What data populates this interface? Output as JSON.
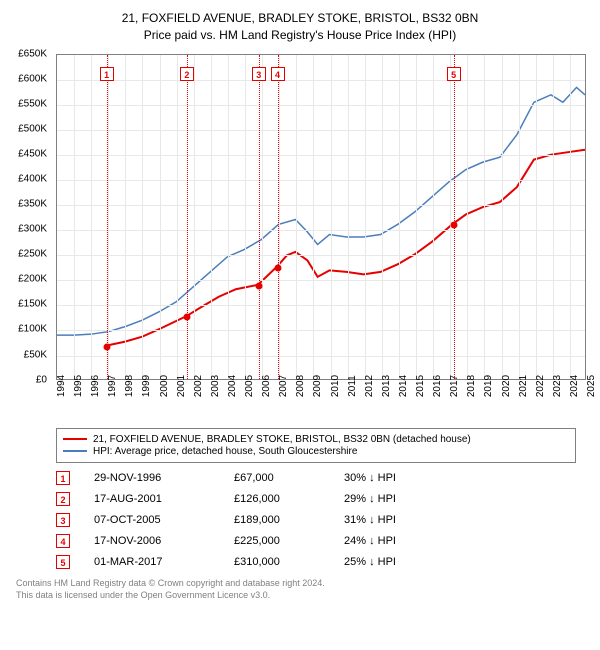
{
  "title": {
    "line1": "21, FOXFIELD AVENUE, BRADLEY STOKE, BRISTOL, BS32 0BN",
    "line2": "Price paid vs. HM Land Registry's House Price Index (HPI)"
  },
  "chart": {
    "type": "line",
    "background_color": "#ffffff",
    "border_color": "#808080",
    "grid_color": "#e8e8e8",
    "xlim": [
      1994,
      2025
    ],
    "ylim": [
      0,
      650000
    ],
    "ytick_step": 50000,
    "y_ticks": [
      "£0",
      "£50K",
      "£100K",
      "£150K",
      "£200K",
      "£250K",
      "£300K",
      "£350K",
      "£400K",
      "£450K",
      "£500K",
      "£550K",
      "£600K",
      "£650K"
    ],
    "x_ticks": [
      "1994",
      "1995",
      "1996",
      "1997",
      "1998",
      "1999",
      "2000",
      "2001",
      "2002",
      "2003",
      "2004",
      "2005",
      "2006",
      "2007",
      "2008",
      "2009",
      "2010",
      "2011",
      "2012",
      "2013",
      "2014",
      "2015",
      "2016",
      "2017",
      "2018",
      "2019",
      "2020",
      "2021",
      "2022",
      "2023",
      "2024",
      "2025"
    ],
    "series_property": {
      "label": "21, FOXFIELD AVENUE, BRADLEY STOKE, BRISTOL, BS32 0BN (detached house)",
      "color": "#e60000",
      "line_width": 2,
      "points": [
        [
          1996.9,
          67000
        ],
        [
          1998,
          75000
        ],
        [
          1999,
          85000
        ],
        [
          2000,
          100000
        ],
        [
          2001.6,
          126000
        ],
        [
          2002.5,
          145000
        ],
        [
          2003.5,
          165000
        ],
        [
          2004.5,
          180000
        ],
        [
          2005.8,
          189000
        ],
        [
          2006.9,
          225000
        ],
        [
          2007.5,
          248000
        ],
        [
          2008,
          255000
        ],
        [
          2008.7,
          238000
        ],
        [
          2009.3,
          205000
        ],
        [
          2010,
          218000
        ],
        [
          2011,
          215000
        ],
        [
          2012,
          210000
        ],
        [
          2013,
          215000
        ],
        [
          2014,
          230000
        ],
        [
          2015,
          250000
        ],
        [
          2016,
          275000
        ],
        [
          2017.2,
          310000
        ],
        [
          2018,
          330000
        ],
        [
          2019,
          345000
        ],
        [
          2020,
          355000
        ],
        [
          2021,
          385000
        ],
        [
          2022,
          440000
        ],
        [
          2023,
          450000
        ],
        [
          2024,
          455000
        ],
        [
          2025,
          460000
        ]
      ]
    },
    "series_hpi": {
      "label": "HPI: Average price, detached house, South Gloucestershire",
      "color": "#4a7ebb",
      "line_width": 1.5,
      "points": [
        [
          1994,
          88000
        ],
        [
          1995,
          88000
        ],
        [
          1996,
          90000
        ],
        [
          1997,
          95000
        ],
        [
          1998,
          105000
        ],
        [
          1999,
          118000
        ],
        [
          2000,
          135000
        ],
        [
          2001,
          155000
        ],
        [
          2002,
          185000
        ],
        [
          2003,
          215000
        ],
        [
          2004,
          245000
        ],
        [
          2005,
          260000
        ],
        [
          2006,
          280000
        ],
        [
          2007,
          310000
        ],
        [
          2008,
          320000
        ],
        [
          2008.7,
          295000
        ],
        [
          2009.3,
          270000
        ],
        [
          2010,
          290000
        ],
        [
          2011,
          285000
        ],
        [
          2012,
          285000
        ],
        [
          2013,
          290000
        ],
        [
          2014,
          310000
        ],
        [
          2015,
          335000
        ],
        [
          2016,
          365000
        ],
        [
          2017,
          395000
        ],
        [
          2018,
          420000
        ],
        [
          2019,
          435000
        ],
        [
          2020,
          445000
        ],
        [
          2021,
          490000
        ],
        [
          2022,
          555000
        ],
        [
          2023,
          570000
        ],
        [
          2023.7,
          555000
        ],
        [
          2024.5,
          585000
        ],
        [
          2025,
          570000
        ]
      ]
    },
    "markers": [
      {
        "n": "1",
        "x": 1996.9,
        "y": 67000,
        "color": "#e60000"
      },
      {
        "n": "2",
        "x": 2001.6,
        "y": 126000,
        "color": "#e60000"
      },
      {
        "n": "3",
        "x": 2005.8,
        "y": 189000,
        "color": "#e60000"
      },
      {
        "n": "4",
        "x": 2006.9,
        "y": 225000,
        "color": "#e60000"
      },
      {
        "n": "5",
        "x": 2017.2,
        "y": 310000,
        "color": "#e60000"
      }
    ],
    "marker_box_y_offset": 12,
    "marker_line_color": "#e60000",
    "point_fill": "#e60000"
  },
  "legend": {
    "items": [
      {
        "color": "#e60000",
        "label": "21, FOXFIELD AVENUE, BRADLEY STOKE, BRISTOL, BS32 0BN (detached house)"
      },
      {
        "color": "#4a7ebb",
        "label": "HPI: Average price, detached house, South Gloucestershire"
      }
    ]
  },
  "events": [
    {
      "n": "1",
      "color": "#e60000",
      "date": "29-NOV-1996",
      "price": "£67,000",
      "diff": "30% ↓ HPI"
    },
    {
      "n": "2",
      "color": "#e60000",
      "date": "17-AUG-2001",
      "price": "£126,000",
      "diff": "29% ↓ HPI"
    },
    {
      "n": "3",
      "color": "#e60000",
      "date": "07-OCT-2005",
      "price": "£189,000",
      "diff": "31% ↓ HPI"
    },
    {
      "n": "4",
      "color": "#e60000",
      "date": "17-NOV-2006",
      "price": "£225,000",
      "diff": "24% ↓ HPI"
    },
    {
      "n": "5",
      "color": "#e60000",
      "date": "01-MAR-2017",
      "price": "£310,000",
      "diff": "25% ↓ HPI"
    }
  ],
  "footer": {
    "line1": "Contains HM Land Registry data © Crown copyright and database right 2024.",
    "line2": "This data is licensed under the Open Government Licence v3.0."
  }
}
